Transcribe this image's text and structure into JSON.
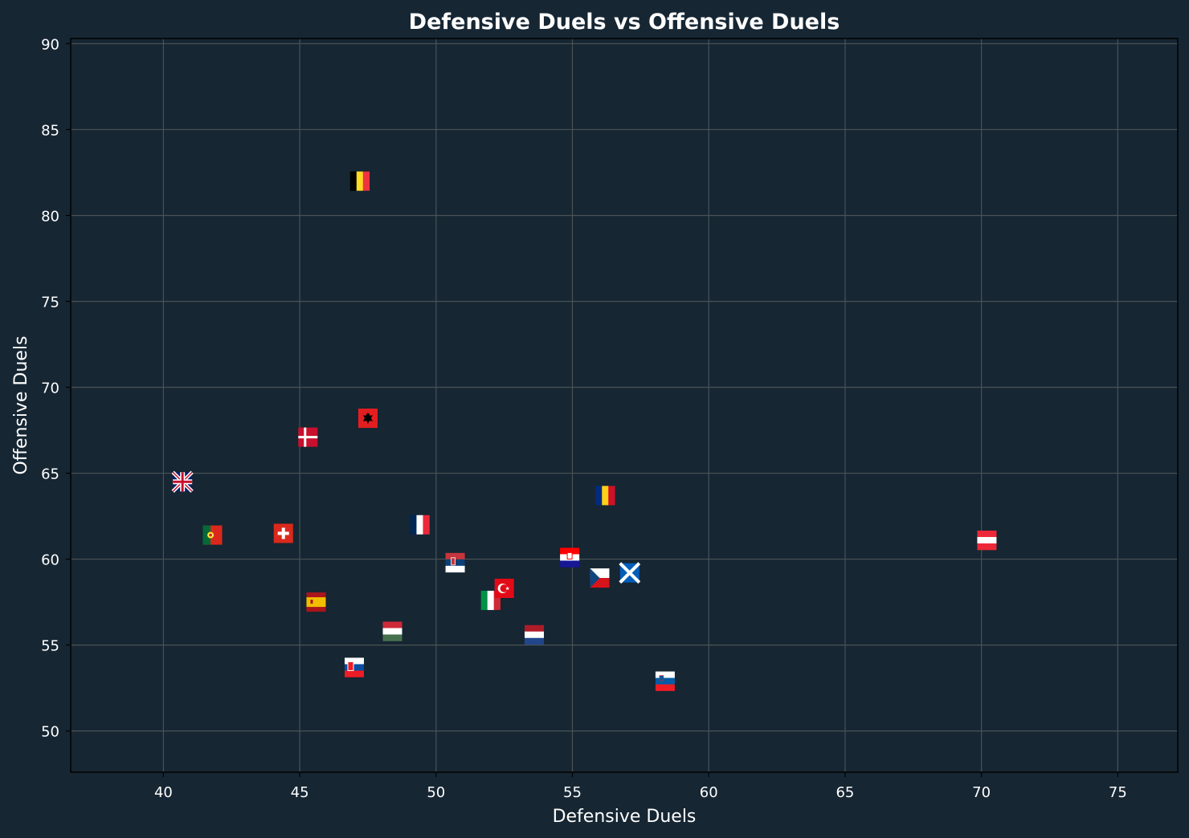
{
  "chart_data": {
    "type": "scatter",
    "title": "Defensive Duels vs Offensive Duels",
    "xlabel": "Defensive Duels",
    "ylabel": "Offensive Duels",
    "xlim": [
      36.6,
      77.2
    ],
    "ylim": [
      47.6,
      90.3
    ],
    "xticks": [
      "40",
      "45",
      "50",
      "55",
      "60",
      "65",
      "70",
      "75"
    ],
    "yticks": [
      "50",
      "55",
      "60",
      "65",
      "70",
      "75",
      "80",
      "85",
      "90"
    ],
    "grid": true,
    "colors": {
      "background": "#162633",
      "grid": "#4a5355",
      "axis": "#000000",
      "text": "#ffffff"
    },
    "points": [
      {
        "marker": "belgium-flag",
        "x": 47.2,
        "y": 82.0
      },
      {
        "marker": "albania-flag",
        "x": 47.5,
        "y": 68.2
      },
      {
        "marker": "denmark-flag",
        "x": 45.3,
        "y": 67.1
      },
      {
        "marker": "england-flag",
        "x": 40.7,
        "y": 64.5
      },
      {
        "marker": "portugal-flag",
        "x": 41.8,
        "y": 61.4
      },
      {
        "marker": "switzerland-flag",
        "x": 44.4,
        "y": 61.5
      },
      {
        "marker": "spain-flag",
        "x": 45.6,
        "y": 57.5
      },
      {
        "marker": "hungary-flag",
        "x": 48.4,
        "y": 55.8
      },
      {
        "marker": "slovakia-flag",
        "x": 47.0,
        "y": 53.7
      },
      {
        "marker": "france-flag",
        "x": 49.4,
        "y": 62.0
      },
      {
        "marker": "serbia-flag",
        "x": 50.7,
        "y": 59.8
      },
      {
        "marker": "italy-flag",
        "x": 52.0,
        "y": 57.6
      },
      {
        "marker": "turkey-flag",
        "x": 52.5,
        "y": 58.3
      },
      {
        "marker": "netherlands-flag",
        "x": 53.6,
        "y": 55.6
      },
      {
        "marker": "croatia-flag",
        "x": 54.9,
        "y": 60.1
      },
      {
        "marker": "czechia-flag",
        "x": 56.0,
        "y": 58.9
      },
      {
        "marker": "romania-flag",
        "x": 56.2,
        "y": 63.7
      },
      {
        "marker": "scotland-flag",
        "x": 57.1,
        "y": 59.2
      },
      {
        "marker": "slovenia-flag",
        "x": 58.4,
        "y": 52.9
      },
      {
        "marker": "austria-flag",
        "x": 70.2,
        "y": 61.1
      }
    ]
  }
}
